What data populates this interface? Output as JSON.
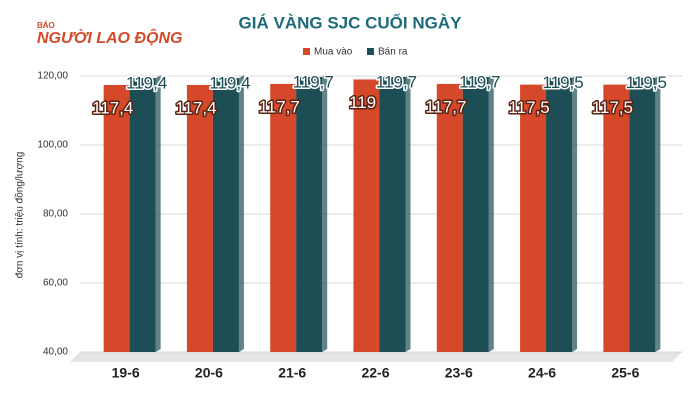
{
  "logo": {
    "small": "BÁO",
    "name": "NGƯỜI LAO ĐỘNG"
  },
  "chart_data": {
    "type": "bar",
    "title": "GIÁ VÀNG SJC CUỐI NGÀY",
    "y_label": "đơn vị tính: triệu đồng/lượng",
    "categories": [
      "19-6",
      "20-6",
      "21-6",
      "22-6",
      "23-6",
      "24-6",
      "25-6"
    ],
    "series": [
      {
        "name": "Mua vào",
        "color": "#d5492a",
        "values": [
          117.4,
          117.4,
          117.7,
          119,
          117.7,
          117.5,
          117.5
        ],
        "value_labels": [
          "117,4",
          "117,4",
          "117,7",
          "119",
          "117,7",
          "117,5",
          "117,5"
        ]
      },
      {
        "name": "Bán ra",
        "color": "#1d4e56",
        "values": [
          119.4,
          119.4,
          119.7,
          119.7,
          119.7,
          119.5,
          119.5
        ],
        "value_labels": [
          "119,4",
          "119,4",
          "119,7",
          "119,7",
          "119,7",
          "119,5",
          "119,5"
        ]
      }
    ],
    "ylim": [
      40,
      120
    ],
    "yticks": [
      {
        "value": 40,
        "label": "40,00"
      },
      {
        "value": 60,
        "label": "60,00"
      },
      {
        "value": 80,
        "label": "80,00"
      },
      {
        "value": 100,
        "label": "100,00"
      },
      {
        "value": 120,
        "label": "120,00"
      }
    ],
    "grid": true,
    "legend": "top"
  }
}
